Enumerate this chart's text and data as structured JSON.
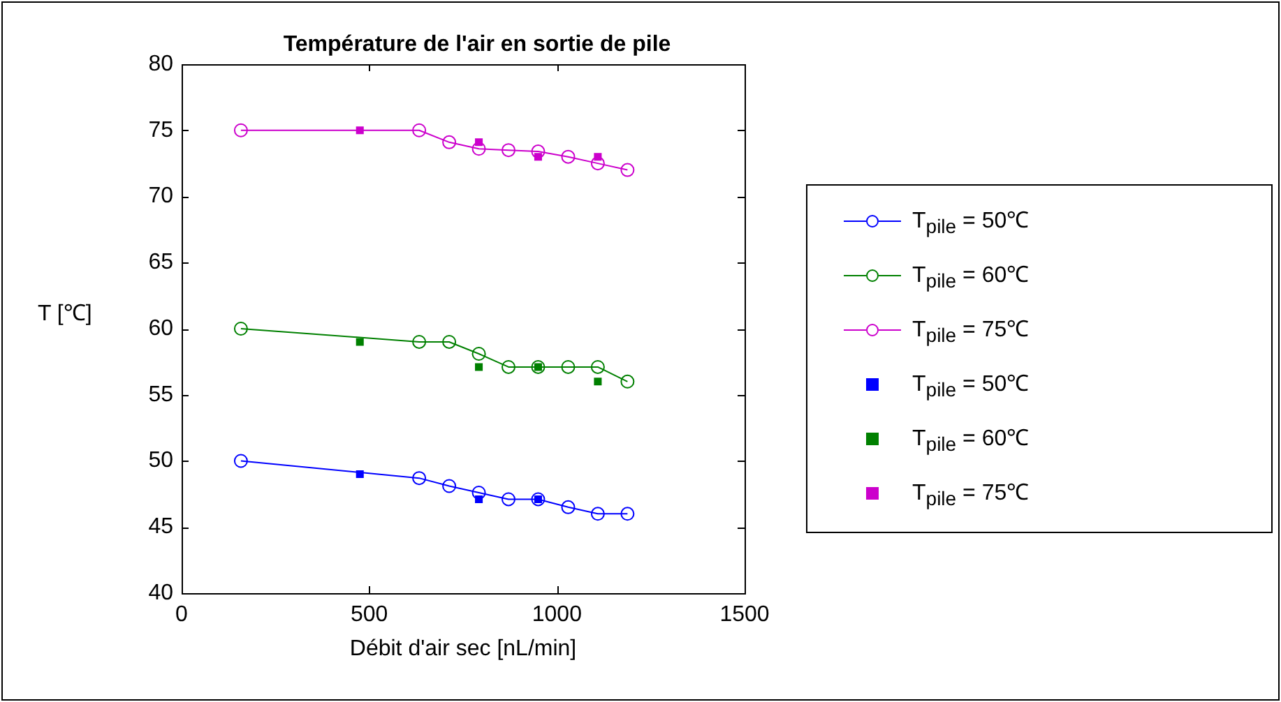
{
  "chart_data": {
    "type": "line",
    "title": "Température de l'air en sortie de pile",
    "xlabel": "Débit d'air sec [nL/min]",
    "ylabel": "T [℃]",
    "xlim": [
      0,
      1500
    ],
    "xticks": [
      0,
      500,
      1000,
      1500
    ],
    "ylim": [
      40,
      80
    ],
    "yticks": [
      40,
      45,
      50,
      55,
      60,
      65,
      70,
      75,
      80
    ],
    "grid": false,
    "legend": "right",
    "series": [
      {
        "name": "T$_{pile}$ = 50℃",
        "color": "#0000ff",
        "type": "line",
        "marker": "circle",
        "x": [
          158,
          633,
          713,
          792,
          871,
          950,
          1030,
          1109,
          1188
        ],
        "values": [
          50,
          48.7,
          48.1,
          47.6,
          47.1,
          47.1,
          46.5,
          46,
          46
        ]
      },
      {
        "name": "T$_{pile}$ = 60℃",
        "color": "#008000",
        "type": "line",
        "marker": "circle",
        "x": [
          158,
          633,
          713,
          792,
          871,
          950,
          1030,
          1109,
          1188
        ],
        "values": [
          60,
          59,
          59,
          58.1,
          57.1,
          57.1,
          57.1,
          57.1,
          56
        ]
      },
      {
        "name": "T$_{pile}$ = 75℃",
        "color": "#cc00cc",
        "type": "line",
        "marker": "circle",
        "x": [
          158,
          633,
          713,
          792,
          871,
          950,
          1030,
          1109,
          1188
        ],
        "values": [
          75,
          75,
          74.1,
          73.6,
          73.5,
          73.4,
          73,
          72.5,
          72
        ]
      },
      {
        "name": "T$_{pile}$ = 50℃",
        "color": "#0000ff",
        "type": "scatter",
        "marker": "square",
        "x": [
          475,
          792,
          950
        ],
        "values": [
          49,
          47.1,
          47.1
        ]
      },
      {
        "name": "T$_{pile}$ = 60℃",
        "color": "#008000",
        "type": "scatter",
        "marker": "square",
        "x": [
          475,
          792,
          950,
          1109
        ],
        "values": [
          59,
          57.1,
          57.1,
          56
        ]
      },
      {
        "name": "T$_{pile}$ = 75℃",
        "color": "#cc00cc",
        "type": "scatter",
        "marker": "square",
        "x": [
          475,
          792,
          950,
          1109
        ],
        "values": [
          75,
          74.1,
          73,
          73
        ]
      }
    ]
  }
}
